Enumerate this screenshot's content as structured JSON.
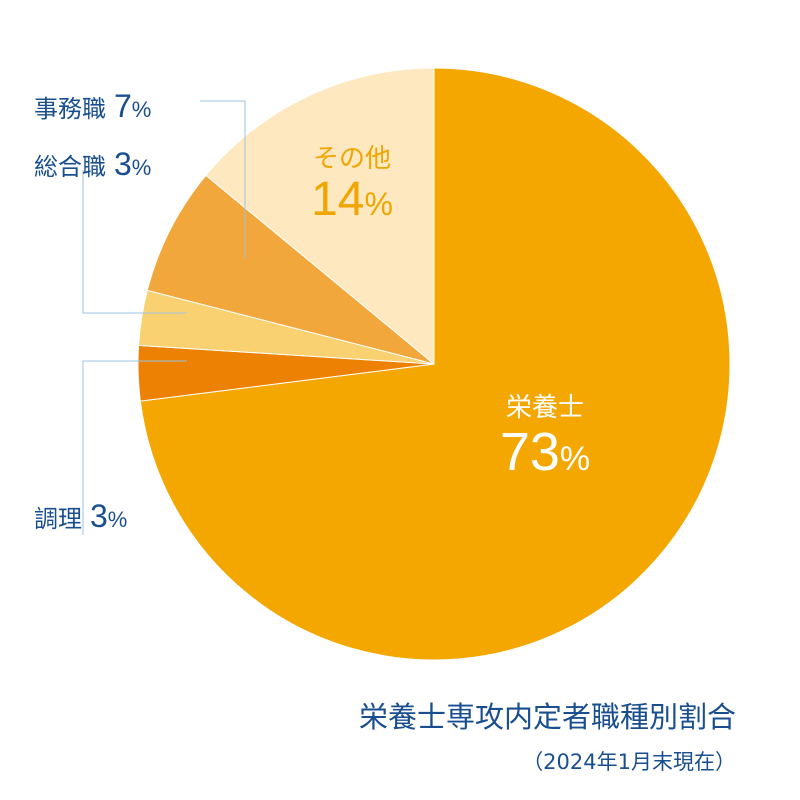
{
  "chart_data": {
    "type": "pie",
    "title": "栄養士専攻内定者職種別割合",
    "subtitle": "（2024年1月末現在）",
    "start": "12 o'clock, clockwise",
    "slices": [
      {
        "label": "栄養士",
        "value": 73,
        "pct_text": "73",
        "color": "#f3a700",
        "label_position": "inside"
      },
      {
        "label": "調理",
        "value": 3,
        "pct_text": "3",
        "color": "#ec8103",
        "label_position": "outside-left"
      },
      {
        "label": "総合職",
        "value": 3,
        "pct_text": "3",
        "color": "#f9d170",
        "label_position": "outside-left"
      },
      {
        "label": "事務職",
        "value": 7,
        "pct_text": "7",
        "color": "#f2a73c",
        "label_position": "outside-left"
      },
      {
        "label": "その他",
        "value": 14,
        "pct_text": "14",
        "color": "#fde8bf",
        "label_position": "inside"
      }
    ],
    "percent_sign": "%"
  },
  "colors": {
    "label_text": "#1a4f8f",
    "inside_label_main": "#ffffff",
    "inside_label_other": "#f0a500",
    "leader_line": "#9ec3e2"
  }
}
